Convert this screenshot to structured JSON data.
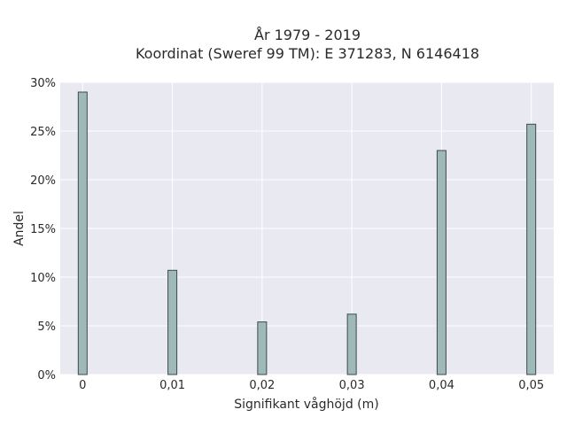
{
  "chart_data": {
    "type": "bar",
    "title_lines": [
      "År 1979 - 2019",
      "Koordinat (Sweref 99 TM): E 371283, N 6146418"
    ],
    "xlabel": "Signifikant våghöjd (m)",
    "ylabel": "Andel",
    "categories": [
      0,
      0.01,
      0.02,
      0.03,
      0.04,
      0.05
    ],
    "x_tick_labels": [
      "0",
      "0,01",
      "0,02",
      "0,03",
      "0,04",
      "0,05"
    ],
    "values": [
      29.0,
      10.7,
      5.4,
      6.2,
      23.0,
      25.7
    ],
    "ylim": [
      0,
      30
    ],
    "yticks": [
      0,
      5,
      10,
      15,
      20,
      25,
      30
    ],
    "y_tick_labels": [
      "0%",
      "5%",
      "10%",
      "15%",
      "20%",
      "25%",
      "30%"
    ],
    "xlim": [
      -0.0025,
      0.0525
    ],
    "grid": true,
    "colors": {
      "plot_bg": "#e9e9f1",
      "bar_fill": "#9fb8b8",
      "bar_stroke": "#3c4a4a",
      "grid": "#ffffff"
    }
  }
}
